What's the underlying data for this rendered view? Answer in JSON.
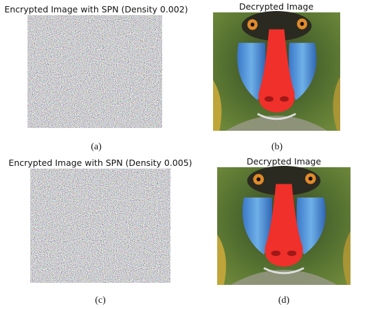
{
  "panels": [
    {
      "title": "Encrypted Image with SPN (Density 0.002)",
      "caption": "(a)"
    },
    {
      "title": "Decrypted Image",
      "caption": "(b)"
    },
    {
      "title": "Encrypted Image with SPN (Density 0.005)",
      "caption": "(c)"
    },
    {
      "title": "Decrypted Image",
      "caption": "(d)"
    }
  ]
}
